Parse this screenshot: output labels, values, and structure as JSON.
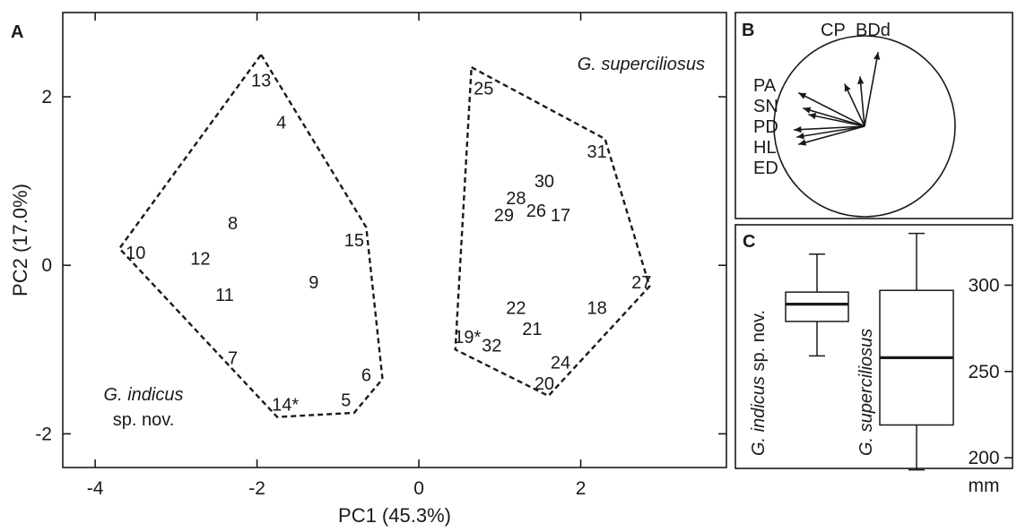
{
  "chart_data": [
    {
      "panel": "A",
      "type": "scatter",
      "xlabel": "PC1 (45.3%)",
      "ylabel": "PC2 (17.0%)",
      "xlim": [
        -4.4,
        3.8
      ],
      "ylim": [
        -2.4,
        3.0
      ],
      "xticks": [
        -4,
        -2,
        0,
        2
      ],
      "yticks": [
        -2,
        0,
        2
      ],
      "group_labels": [
        {
          "lines": [
            "G. indicus",
            "sp. nov."
          ]
        },
        {
          "lines": [
            "G. superciliosus"
          ]
        }
      ],
      "series": [
        {
          "points": [
            {
              "label": "13",
              "x": -1.95,
              "y": 2.2
            },
            {
              "label": "4",
              "x": -1.7,
              "y": 1.7
            },
            {
              "label": "8",
              "x": -2.3,
              "y": 0.5
            },
            {
              "label": "10",
              "x": -3.5,
              "y": 0.15
            },
            {
              "label": "12",
              "x": -2.7,
              "y": 0.08
            },
            {
              "label": "15",
              "x": -0.8,
              "y": 0.3
            },
            {
              "label": "9",
              "x": -1.3,
              "y": -0.2
            },
            {
              "label": "11",
              "x": -2.4,
              "y": -0.35
            },
            {
              "label": "7",
              "x": -2.3,
              "y": -1.1
            },
            {
              "label": "6",
              "x": -0.65,
              "y": -1.3
            },
            {
              "label": "5",
              "x": -0.9,
              "y": -1.6
            },
            {
              "label": "14*",
              "x": -1.65,
              "y": -1.65
            }
          ],
          "hull": [
            [
              -1.95,
              2.5
            ],
            [
              -0.65,
              0.45
            ],
            [
              -0.45,
              -1.35
            ],
            [
              -0.8,
              -1.75
            ],
            [
              -1.75,
              -1.8
            ],
            [
              -3.7,
              0.2
            ]
          ]
        },
        {
          "points": [
            {
              "label": "25",
              "x": 0.8,
              "y": 2.1
            },
            {
              "label": "31",
              "x": 2.2,
              "y": 1.35
            },
            {
              "label": "30",
              "x": 1.55,
              "y": 1.0
            },
            {
              "label": "28",
              "x": 1.2,
              "y": 0.8
            },
            {
              "label": "29",
              "x": 1.05,
              "y": 0.6
            },
            {
              "label": "26",
              "x": 1.45,
              "y": 0.65
            },
            {
              "label": "17",
              "x": 1.75,
              "y": 0.6
            },
            {
              "label": "27",
              "x": 2.75,
              "y": -0.2
            },
            {
              "label": "22",
              "x": 1.2,
              "y": -0.5
            },
            {
              "label": "18",
              "x": 2.2,
              "y": -0.5
            },
            {
              "label": "21",
              "x": 1.4,
              "y": -0.75
            },
            {
              "label": "19*",
              "x": 0.6,
              "y": -0.85
            },
            {
              "label": "32",
              "x": 0.9,
              "y": -0.95
            },
            {
              "label": "24",
              "x": 1.75,
              "y": -1.15
            },
            {
              "label": "20",
              "x": 1.55,
              "y": -1.4
            }
          ],
          "hull": [
            [
              0.65,
              2.35
            ],
            [
              2.3,
              1.5
            ],
            [
              2.85,
              -0.25
            ],
            [
              1.6,
              -1.55
            ],
            [
              0.45,
              -1.0
            ]
          ]
        }
      ]
    },
    {
      "panel": "B",
      "type": "loadings",
      "top_labels": [
        "CP",
        "BDd"
      ],
      "left_labels": [
        "PA",
        "SN",
        "PD",
        "HL",
        "ED"
      ],
      "vectors": [
        {
          "name": "BDd",
          "x": 0.15,
          "y": 0.82
        },
        {
          "name": "CP",
          "x": -0.05,
          "y": 0.55
        },
        {
          "name": "CP2",
          "x": -0.22,
          "y": 0.47
        },
        {
          "name": "PA",
          "x": -0.73,
          "y": 0.37
        },
        {
          "name": "SN",
          "x": -0.68,
          "y": 0.2
        },
        {
          "name": "PD",
          "x": -0.62,
          "y": 0.13
        },
        {
          "name": "HL",
          "x": -0.78,
          "y": -0.04
        },
        {
          "name": "HL2",
          "x": -0.75,
          "y": -0.12
        },
        {
          "name": "ED",
          "x": -0.73,
          "y": -0.2
        }
      ]
    },
    {
      "panel": "C",
      "type": "boxplot",
      "unit": "mm",
      "yticks": [
        200,
        250,
        300
      ],
      "ylim": [
        185,
        335
      ],
      "boxes": [
        {
          "name_lines": [
            "G. indicus",
            "sp. nov."
          ],
          "min": 259,
          "q1": 279,
          "median": 289,
          "q3": 296,
          "max": 318
        },
        {
          "name_lines": [
            "G. superciliosus"
          ],
          "min": 193,
          "q1": 219,
          "median": 258,
          "q3": 297,
          "max": 330
        }
      ]
    }
  ]
}
